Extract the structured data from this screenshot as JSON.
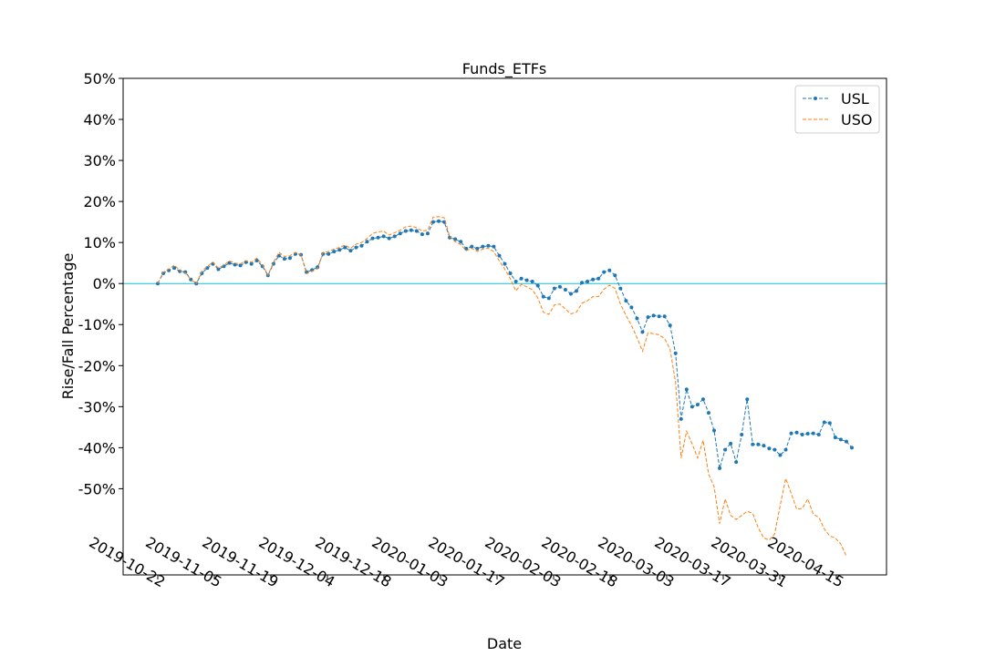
{
  "chart_data": {
    "type": "line",
    "title": "Funds_ETFs",
    "xlabel": "Date",
    "ylabel": "Rise/Fall Percentage",
    "x_ticks": [
      "2019-10-22",
      "2019-11-05",
      "2019-11-19",
      "2019-12-04",
      "2019-12-18",
      "2020-01-03",
      "2020-01-17",
      "2020-02-03",
      "2020-02-18",
      "2020-03-03",
      "2020-03-17",
      "2020-03-31",
      "2020-04-15"
    ],
    "y_ticks": [
      "50%",
      "40%",
      "30%",
      "20%",
      "10%",
      "0%",
      "-10%",
      "-20%",
      "-30%",
      "-40%",
      "-50%"
    ],
    "y_tick_values": [
      50,
      40,
      30,
      20,
      10,
      0,
      -10,
      -20,
      -30,
      -40,
      -50
    ],
    "ylim": [
      -71,
      50
    ],
    "grid": false,
    "legend_position": "top-right",
    "reference_line": {
      "y": 0,
      "color": "#17becf"
    },
    "series": [
      {
        "name": "USL",
        "color": "#1f77b4",
        "style": "dashed-with-markers",
        "values": [
          0,
          2.5,
          3.2,
          3.8,
          3.0,
          2.8,
          1.0,
          0,
          2.5,
          3.8,
          4.8,
          3.5,
          4.2,
          5.0,
          4.6,
          4.4,
          5.2,
          4.8,
          5.6,
          4.2,
          2.0,
          4.8,
          6.8,
          6.0,
          6.2,
          7.2,
          7.0,
          2.8,
          3.3,
          4.0,
          7.2,
          7.2,
          7.8,
          8.2,
          8.8,
          8.0,
          8.8,
          9.2,
          10.2,
          11.0,
          11.2,
          11.5,
          11.0,
          11.5,
          12.2,
          12.8,
          13.0,
          12.8,
          12.0,
          12.2,
          15.0,
          15.2,
          15.0,
          11.2,
          10.8,
          10.2,
          8.5,
          9.0,
          8.5,
          9.0,
          9.2,
          9.0,
          6.8,
          4.8,
          2.5,
          0.5,
          1.2,
          0.8,
          0.5,
          -0.5,
          -3.2,
          -3.6,
          -1.2,
          -0.8,
          -1.5,
          -2.5,
          -1.8,
          0.2,
          0.5,
          1.0,
          1.2,
          2.8,
          3.2,
          2.0,
          -1.2,
          -4.2,
          -5.8,
          -8.5,
          -11.8,
          -8.2,
          -7.8,
          -8.0,
          -8.0,
          -10.2,
          -17.0,
          -33.0,
          -25.8,
          -30.0,
          -29.5,
          -28.2,
          -31.5,
          -35.8,
          -45.0,
          -40.5,
          -39.0,
          -43.5,
          -36.8,
          -28.2,
          -39.2,
          -39.2,
          -39.5,
          -40.2,
          -40.5,
          -41.8,
          -40.5,
          -36.5,
          -36.3,
          -36.8,
          -36.6,
          -36.5,
          -36.8,
          -33.8,
          -34.0,
          -37.5,
          -38.0,
          -38.5,
          -40.0
        ]
      },
      {
        "name": "USO",
        "color": "#ff7f0e",
        "style": "dashed",
        "values": [
          0,
          2.8,
          3.5,
          4.5,
          3.2,
          2.6,
          1.0,
          0,
          3.0,
          4.2,
          5.2,
          3.8,
          4.5,
          5.5,
          5.0,
          4.8,
          5.6,
          5.2,
          6.2,
          4.6,
          2.0,
          5.2,
          7.6,
          6.6,
          6.8,
          7.6,
          7.0,
          2.4,
          3.0,
          3.6,
          7.6,
          7.8,
          8.4,
          8.8,
          9.4,
          8.6,
          9.6,
          10.0,
          11.0,
          12.2,
          12.6,
          12.8,
          11.8,
          12.4,
          13.0,
          13.8,
          14.0,
          13.6,
          12.8,
          13.0,
          16.2,
          16.3,
          16.0,
          11.5,
          10.2,
          9.5,
          8.0,
          8.6,
          7.8,
          8.4,
          8.6,
          7.8,
          5.5,
          3.5,
          1.2,
          -1.8,
          -0.2,
          -0.8,
          -1.5,
          -3.5,
          -7.0,
          -7.5,
          -5.2,
          -5.0,
          -6.2,
          -7.4,
          -7.0,
          -4.8,
          -4.2,
          -3.2,
          -3.2,
          -1.4,
          -0.4,
          -1.2,
          -5.0,
          -7.8,
          -10.2,
          -13.2,
          -16.5,
          -12.0,
          -12.2,
          -12.5,
          -13.4,
          -16.0,
          -24.0,
          -42.5,
          -36.0,
          -39.0,
          -42.5,
          -38.2,
          -46.5,
          -49.5,
          -58.5,
          -52.5,
          -56.5,
          -57.5,
          -56.5,
          -55.5,
          -56.0,
          -59.5,
          -62.0,
          -62.5,
          -61.0,
          -54.0,
          -47.5,
          -51.2,
          -55.0,
          -54.8,
          -52.5,
          -56.2,
          -57.0,
          -59.8,
          -61.5,
          -62.0,
          -63.5,
          -66.5
        ]
      }
    ]
  }
}
